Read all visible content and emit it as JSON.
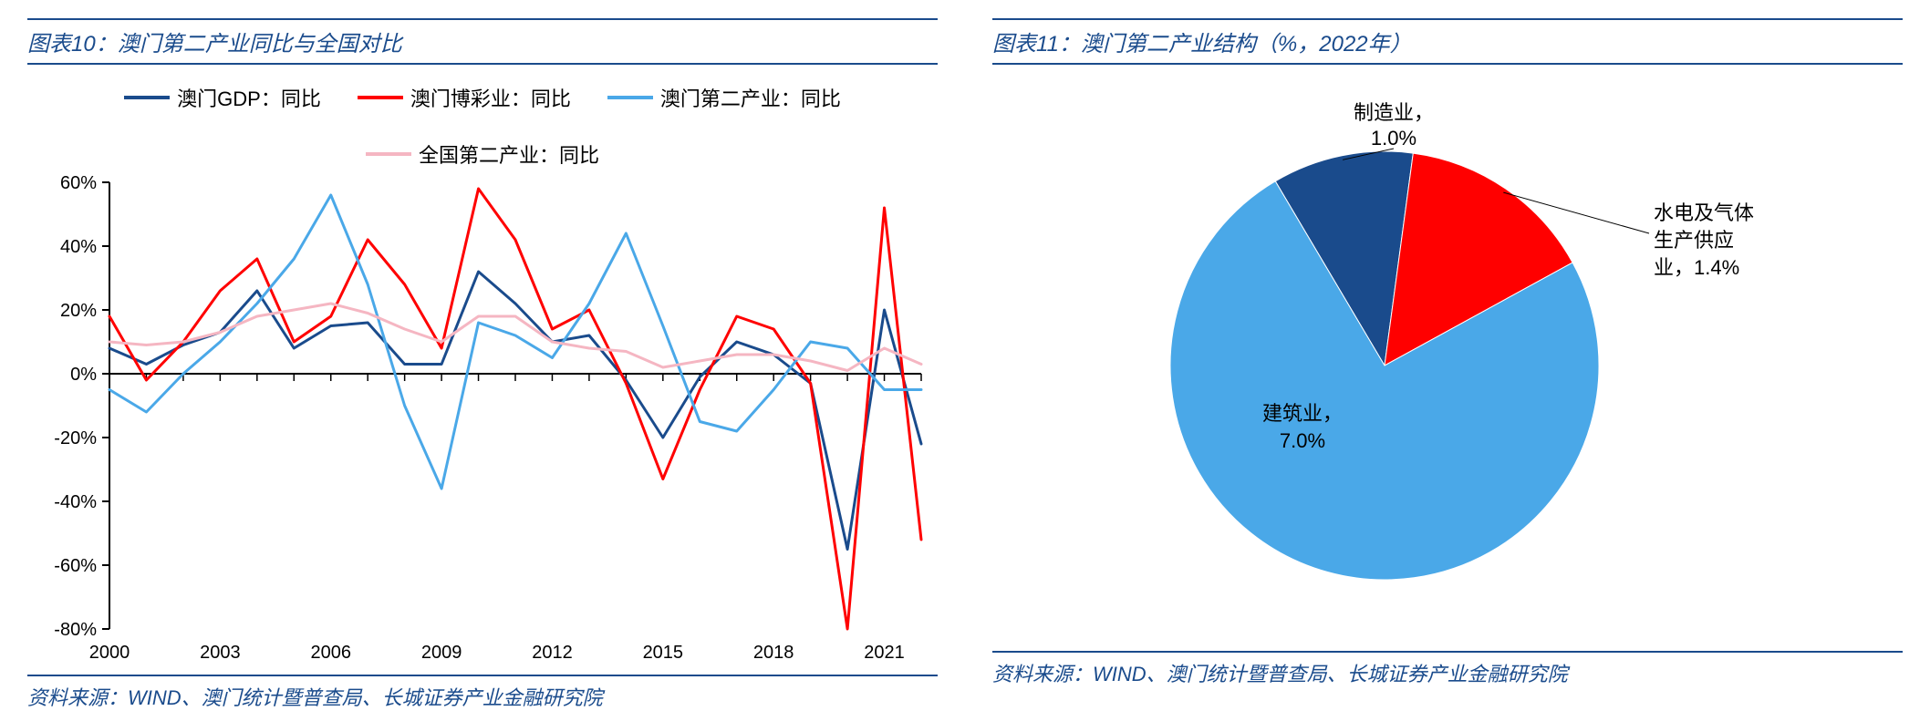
{
  "left": {
    "title": "图表10：澳门第二产业同比与全国对比",
    "source": "资料来源：WIND、澳门统计暨普查局、长城证券产业金融研究院",
    "chart": {
      "type": "line",
      "ylim": [
        -80,
        60
      ],
      "ytick_step": 20,
      "ytick_suffix": "%",
      "xlim": [
        2000,
        2022
      ],
      "xticks": [
        2000,
        2003,
        2006,
        2009,
        2012,
        2015,
        2018,
        2021
      ],
      "background_color": "#ffffff",
      "axis_color": "#000000",
      "line_width": 3,
      "series": [
        {
          "label": "澳门GDP：同比",
          "color": "#1a4b8c",
          "values": [
            8,
            3,
            9,
            13,
            26,
            8,
            15,
            16,
            3,
            3,
            32,
            22,
            10,
            12,
            -2,
            -20,
            -1,
            10,
            6,
            -3,
            -55,
            20,
            -22
          ]
        },
        {
          "label": "澳门博彩业：同比",
          "color": "#ff0000",
          "values": [
            18,
            -2,
            10,
            26,
            36,
            10,
            18,
            42,
            28,
            8,
            58,
            42,
            14,
            20,
            -3,
            -33,
            -5,
            18,
            14,
            -3,
            -80,
            52,
            -52
          ]
        },
        {
          "label": "澳门第二产业：同比",
          "color": "#4aa8e8",
          "values": [
            -5,
            -12,
            0,
            10,
            22,
            36,
            56,
            28,
            -10,
            -36,
            16,
            12,
            5,
            22,
            44,
            15,
            -15,
            -18,
            -5,
            10,
            8,
            -5,
            -5
          ]
        },
        {
          "label": "全国第二产业：同比",
          "color": "#f5b6c2",
          "values": [
            10,
            9,
            10,
            13,
            18,
            20,
            22,
            19,
            14,
            10,
            18,
            18,
            10,
            8,
            7,
            2,
            4,
            6,
            6,
            4,
            1,
            8,
            3
          ]
        }
      ]
    }
  },
  "right": {
    "title": "图表11：澳门第二产业结构（%，2022年）",
    "source": "资料来源：WIND、澳门统计暨普查局、长城证券产业金融研究院",
    "chart": {
      "type": "pie",
      "background_color": "#ffffff",
      "slices": [
        {
          "label": "制造业，",
          "value_text": "1.0%",
          "value": 1.0,
          "color": "#1a4b8c"
        },
        {
          "label": "水电及气体生产供应业，",
          "value_text": "1.4%",
          "value": 1.4,
          "color": "#ff0000"
        },
        {
          "label": "建筑业，",
          "value_text": "7.0%",
          "value": 7.0,
          "color": "#4aa8e8"
        }
      ]
    }
  }
}
